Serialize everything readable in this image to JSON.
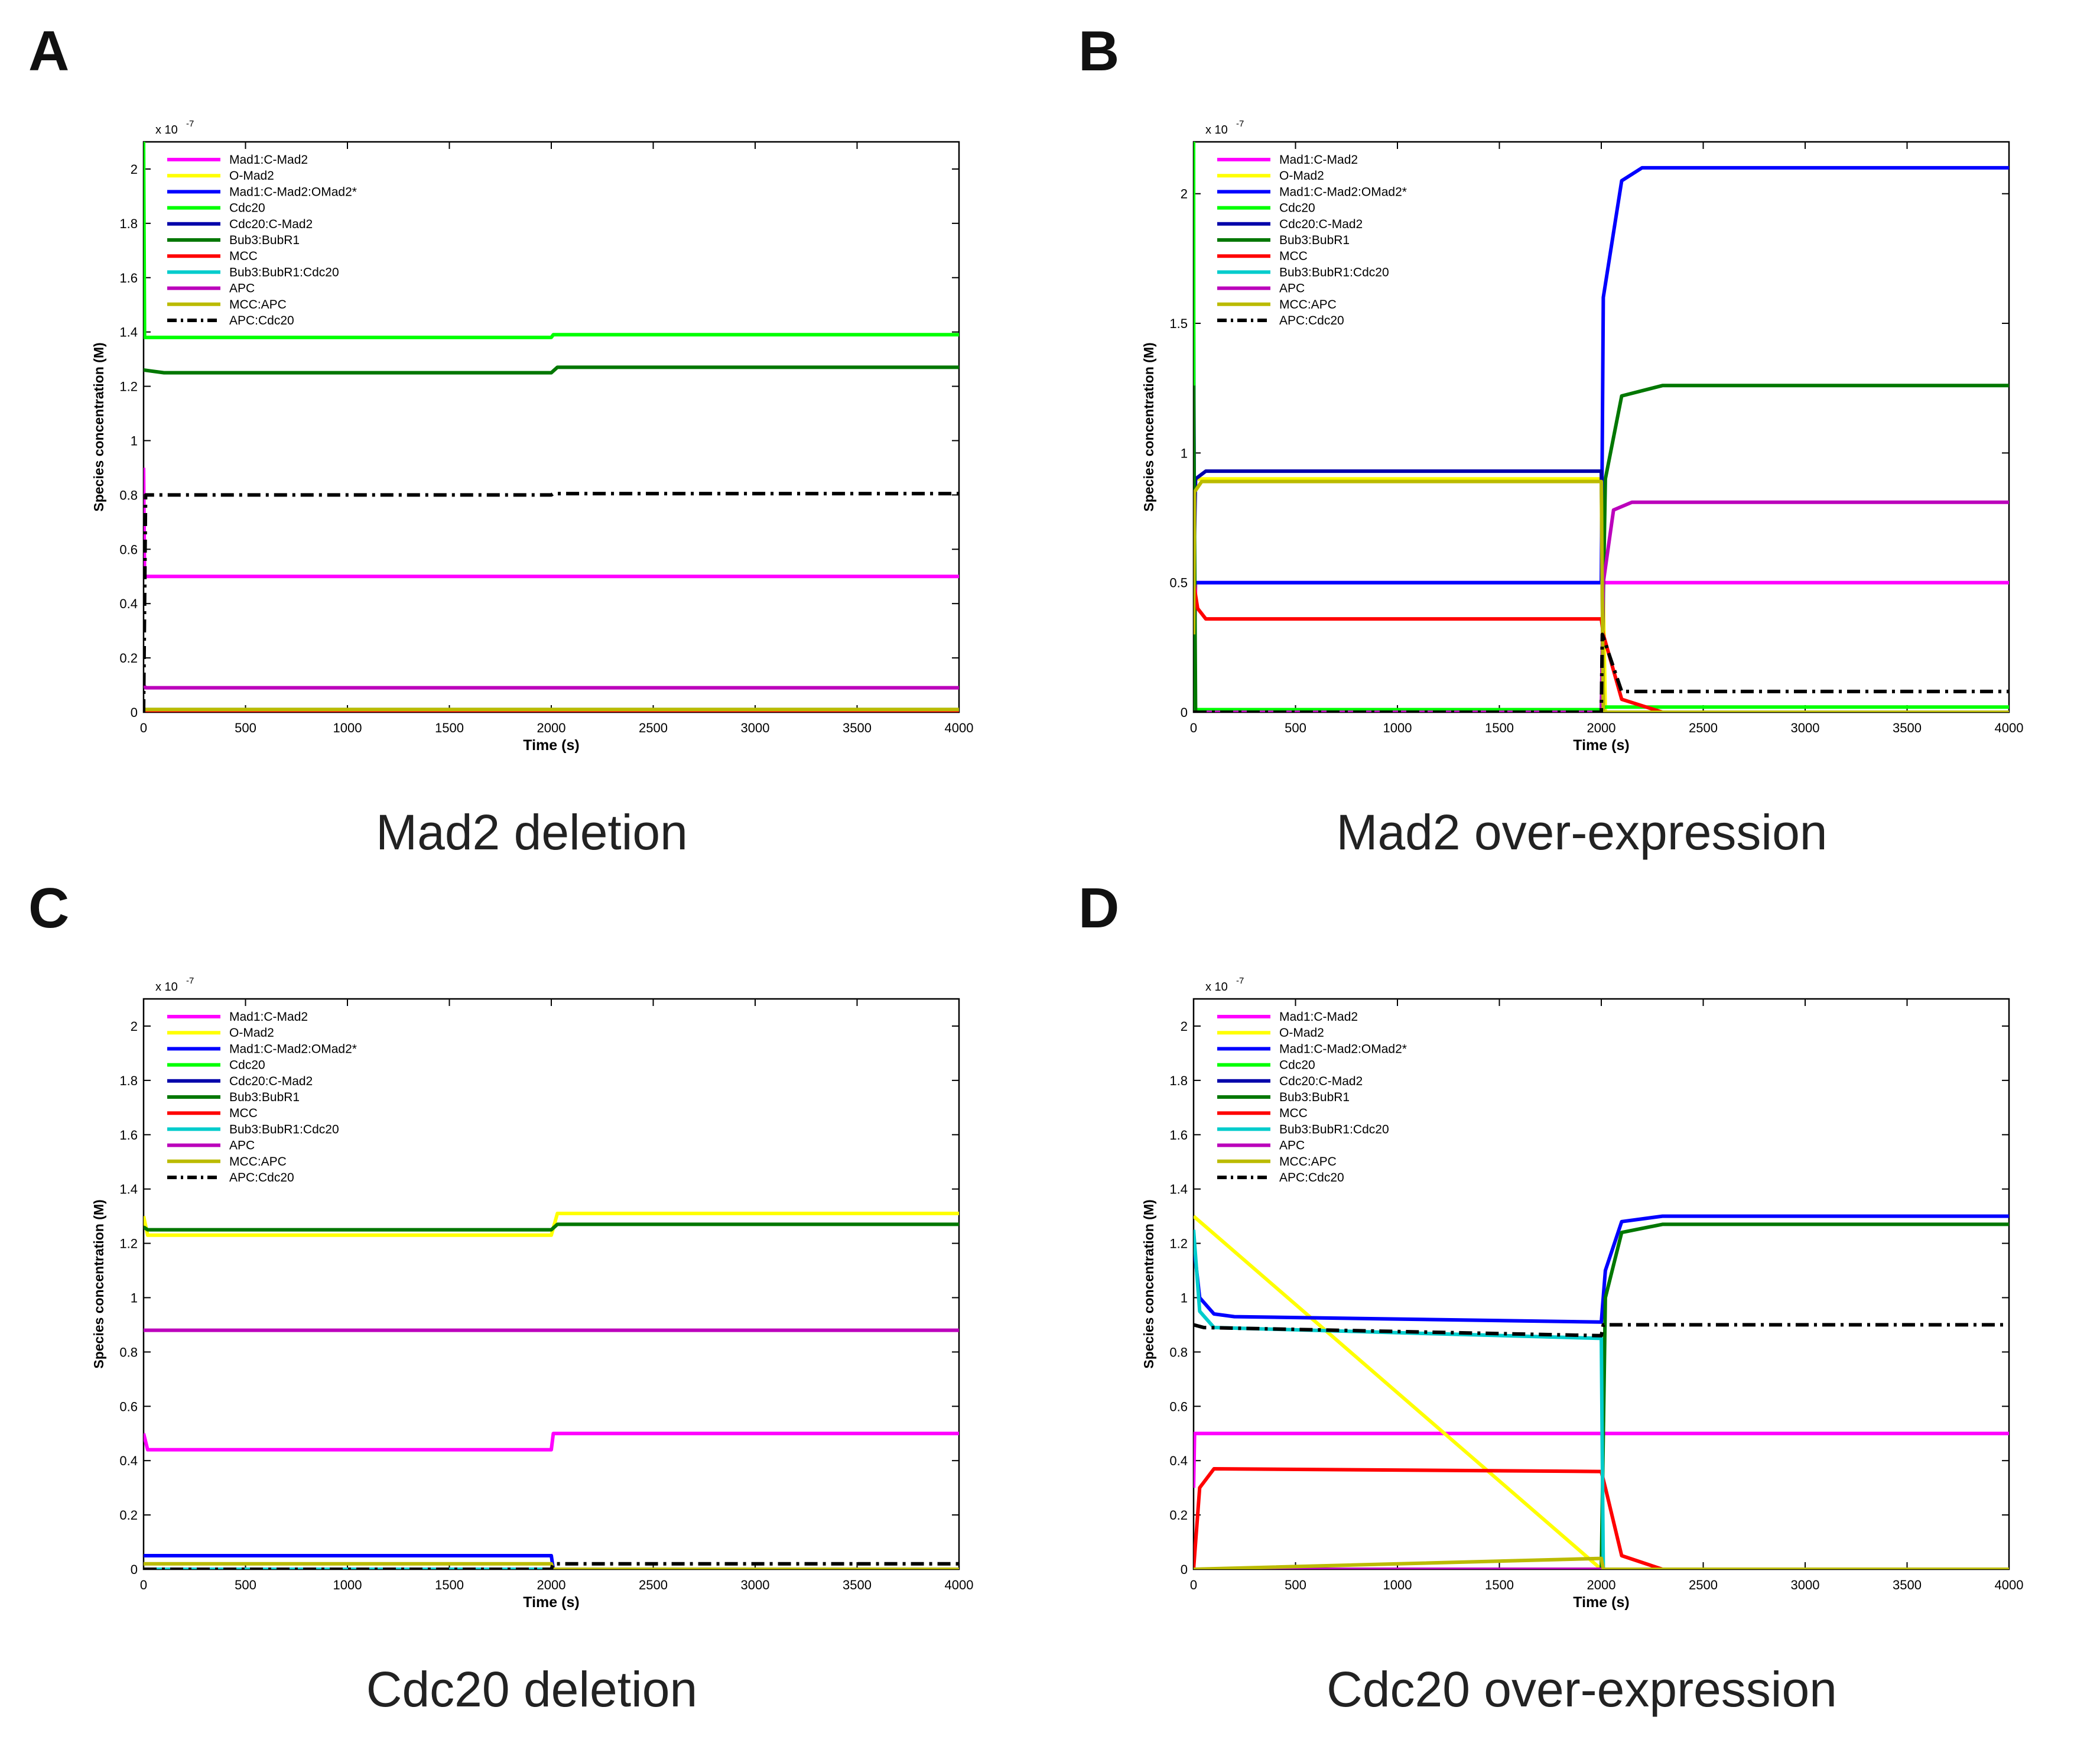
{
  "figure": {
    "xlabel": "Time (s)",
    "ylabel": "Species concentration (M)",
    "exponent": "x 10",
    "exponent_power": "-7",
    "xlim": [
      0,
      4000
    ],
    "xticks": [
      0,
      500,
      1000,
      1500,
      2000,
      2500,
      3000,
      3500,
      4000
    ],
    "colors": {
      "Mad1:C-Mad2": "#ff00ff",
      "O-Mad2": "#ffff00",
      "Mad1:C-Mad2:OMad2*": "#0000ff",
      "Cdc20": "#00ff00",
      "Cdc20:C-Mad2": "#0000aa",
      "Bub3:BubR1": "#007700",
      "MCC": "#ff0000",
      "Bub3:BubR1:Cdc20": "#00cccc",
      "APC": "#bb00bb",
      "MCC:APC": "#bbbb00",
      "APC:Cdc20": "#000000"
    }
  },
  "panels": [
    {
      "letter": "A",
      "caption": "Mad2 deletion"
    },
    {
      "letter": "B",
      "caption": "Mad2 over-expression"
    },
    {
      "letter": "C",
      "caption": "Cdc20 deletion"
    },
    {
      "letter": "D",
      "caption": "Cdc20 over-expression"
    }
  ],
  "chart_data": [
    {
      "type": "line",
      "xlabel": "Time (s)",
      "ylabel": "Species concentration (M)",
      "xlim": [
        0,
        4000
      ],
      "ylim": [
        0,
        2.1
      ],
      "yticks": [
        0,
        0.2,
        0.4,
        0.6,
        0.8,
        1,
        1.2,
        1.4,
        1.6,
        1.8,
        2
      ],
      "y_scale_note": "x 10^-7",
      "legend": "top-left",
      "series": [
        {
          "name": "Mad1:C-Mad2",
          "x": [
            0,
            5,
            40,
            2000,
            4000
          ],
          "y": [
            0.9,
            0.5,
            0.5,
            0.5,
            0.5
          ]
        },
        {
          "name": "O-Mad2",
          "x": [
            0,
            4000
          ],
          "y": [
            0.005,
            0.005
          ]
        },
        {
          "name": "Mad1:C-Mad2:OMad2*",
          "x": [
            0,
            4000
          ],
          "y": [
            0.0,
            0.0
          ]
        },
        {
          "name": "Cdc20",
          "x": [
            0,
            5,
            50,
            2000,
            2010,
            4000
          ],
          "y": [
            2.1,
            1.38,
            1.38,
            1.38,
            1.39,
            1.39
          ]
        },
        {
          "name": "Cdc20:C-Mad2",
          "x": [
            0,
            4000
          ],
          "y": [
            0.0,
            0.0
          ]
        },
        {
          "name": "Bub3:BubR1",
          "x": [
            0,
            100,
            2000,
            2030,
            4000
          ],
          "y": [
            1.26,
            1.25,
            1.25,
            1.27,
            1.27
          ]
        },
        {
          "name": "MCC",
          "x": [
            0,
            4000
          ],
          "y": [
            0.0,
            0.0
          ]
        },
        {
          "name": "Bub3:BubR1:Cdc20",
          "x": [
            0,
            4000
          ],
          "y": [
            0.01,
            0.01
          ]
        },
        {
          "name": "APC",
          "x": [
            0,
            10,
            4000
          ],
          "y": [
            0.1,
            0.09,
            0.09
          ]
        },
        {
          "name": "MCC:APC",
          "x": [
            0,
            4000
          ],
          "y": [
            0.01,
            0.01
          ]
        },
        {
          "name": "APC:Cdc20",
          "x": [
            0,
            10,
            50,
            2000,
            2010,
            4000
          ],
          "y": [
            0.0,
            0.8,
            0.8,
            0.8,
            0.805,
            0.805
          ]
        }
      ]
    },
    {
      "type": "line",
      "xlabel": "Time (s)",
      "ylabel": "Species concentration (M)",
      "xlim": [
        0,
        4000
      ],
      "ylim": [
        0,
        2.2
      ],
      "yticks": [
        0,
        0.5,
        1,
        1.5,
        2
      ],
      "y_scale_note": "x 10^-7",
      "legend": "top-left",
      "series": [
        {
          "name": "Mad1:C-Mad2",
          "x": [
            0,
            10,
            2000,
            2020,
            4000
          ],
          "y": [
            0.0,
            0.5,
            0.5,
            0.5,
            0.5
          ]
        },
        {
          "name": "O-Mad2",
          "x": [
            0,
            20,
            2000,
            2020,
            4000
          ],
          "y": [
            0.9,
            0.9,
            0.9,
            0.0,
            0.0
          ]
        },
        {
          "name": "Mad1:C-Mad2:OMad2*",
          "x": [
            0,
            5,
            20,
            2000,
            2010,
            2100,
            2200,
            4000
          ],
          "y": [
            1.5,
            0.5,
            0.5,
            0.5,
            1.6,
            2.05,
            2.1,
            2.1
          ]
        },
        {
          "name": "Cdc20",
          "x": [
            0,
            2,
            20,
            2000,
            2020,
            4000
          ],
          "y": [
            2.2,
            0.01,
            0.01,
            0.01,
            0.02,
            0.02
          ]
        },
        {
          "name": "Cdc20:C-Mad2",
          "x": [
            0,
            10,
            60,
            2000,
            2010,
            2100,
            4000
          ],
          "y": [
            0.5,
            0.9,
            0.93,
            0.93,
            0.0,
            0.0,
            0.0
          ]
        },
        {
          "name": "Bub3:BubR1",
          "x": [
            0,
            10,
            2000,
            2020,
            2100,
            2300,
            4000
          ],
          "y": [
            1.26,
            0.0,
            0.0,
            0.9,
            1.22,
            1.26,
            1.26
          ]
        },
        {
          "name": "MCC",
          "x": [
            0,
            20,
            60,
            2000,
            2010,
            2100,
            2300,
            4000
          ],
          "y": [
            0.5,
            0.4,
            0.36,
            0.36,
            0.3,
            0.05,
            0.0,
            0.0
          ]
        },
        {
          "name": "Bub3:BubR1:Cdc20",
          "x": [
            0,
            4000
          ],
          "y": [
            0.0,
            0.0
          ]
        },
        {
          "name": "APC",
          "x": [
            0,
            2000,
            2010,
            2060,
            2150,
            4000
          ],
          "y": [
            0.0,
            0.0,
            0.5,
            0.78,
            0.81,
            0.81
          ]
        },
        {
          "name": "MCC:APC",
          "x": [
            0,
            5,
            40,
            2000,
            2010,
            2050,
            4000
          ],
          "y": [
            0.3,
            0.85,
            0.89,
            0.89,
            0.0,
            0.0,
            0.0
          ]
        },
        {
          "name": "APC:Cdc20",
          "x": [
            0,
            2000,
            2005,
            2100,
            4000
          ],
          "y": [
            0.0,
            0.0,
            0.3,
            0.08,
            0.08
          ]
        }
      ]
    },
    {
      "type": "line",
      "xlabel": "Time (s)",
      "ylabel": "Species concentration (M)",
      "xlim": [
        0,
        4000
      ],
      "ylim": [
        0,
        2.1
      ],
      "yticks": [
        0,
        0.2,
        0.4,
        0.6,
        0.8,
        1,
        1.2,
        1.4,
        1.6,
        1.8,
        2
      ],
      "y_scale_note": "x 10^-7",
      "legend": "top-left",
      "series": [
        {
          "name": "Mad1:C-Mad2",
          "x": [
            0,
            20,
            2000,
            2010,
            4000
          ],
          "y": [
            0.5,
            0.44,
            0.44,
            0.5,
            0.5
          ]
        },
        {
          "name": "O-Mad2",
          "x": [
            0,
            20,
            2000,
            2030,
            4000
          ],
          "y": [
            1.3,
            1.23,
            1.23,
            1.31,
            1.31
          ]
        },
        {
          "name": "Mad1:C-Mad2:OMad2*",
          "x": [
            0,
            20,
            2000,
            2010,
            4000
          ],
          "y": [
            0.05,
            0.05,
            0.05,
            0.0,
            0.0
          ]
        },
        {
          "name": "Cdc20",
          "x": [
            0,
            4000
          ],
          "y": [
            0.0,
            0.0
          ]
        },
        {
          "name": "Cdc20:C-Mad2",
          "x": [
            0,
            4000
          ],
          "y": [
            0.0,
            0.0
          ]
        },
        {
          "name": "Bub3:BubR1",
          "x": [
            0,
            20,
            2000,
            2030,
            4000
          ],
          "y": [
            1.26,
            1.25,
            1.25,
            1.27,
            1.27
          ]
        },
        {
          "name": "MCC",
          "x": [
            0,
            4000
          ],
          "y": [
            0.0,
            0.0
          ]
        },
        {
          "name": "Bub3:BubR1:Cdc20",
          "x": [
            0,
            4000
          ],
          "y": [
            0.0,
            0.0
          ]
        },
        {
          "name": "APC",
          "x": [
            0,
            2000,
            2010,
            4000
          ],
          "y": [
            0.88,
            0.88,
            0.88,
            0.88
          ]
        },
        {
          "name": "MCC:APC",
          "x": [
            0,
            2000,
            2010,
            4000
          ],
          "y": [
            0.02,
            0.02,
            0.0,
            0.0
          ]
        },
        {
          "name": "APC:Cdc20",
          "x": [
            0,
            2000,
            2010,
            4000
          ],
          "y": [
            0.0,
            0.0,
            0.02,
            0.02
          ]
        }
      ]
    },
    {
      "type": "line",
      "xlabel": "Time (s)",
      "ylabel": "Species concentration (M)",
      "xlim": [
        0,
        4000
      ],
      "ylim": [
        0,
        2.1
      ],
      "yticks": [
        0,
        0.2,
        0.4,
        0.6,
        0.8,
        1,
        1.2,
        1.4,
        1.6,
        1.8,
        2
      ],
      "y_scale_note": "x 10^-7",
      "legend": "top-left",
      "series": [
        {
          "name": "Mad1:C-Mad2",
          "x": [
            0,
            5,
            2000,
            4000
          ],
          "y": [
            0.3,
            0.5,
            0.5,
            0.5
          ]
        },
        {
          "name": "O-Mad2",
          "x": [
            0,
            2000,
            2020,
            4000
          ],
          "y": [
            1.3,
            0.0,
            0.0,
            0.0
          ]
        },
        {
          "name": "Mad1:C-Mad2:OMad2*",
          "x": [
            0,
            30,
            100,
            200,
            2000,
            2020,
            2100,
            2300,
            4000
          ],
          "y": [
            1.2,
            1.0,
            0.94,
            0.93,
            0.91,
            1.1,
            1.28,
            1.3,
            1.3
          ]
        },
        {
          "name": "Cdc20",
          "x": [
            0,
            4000
          ],
          "y": [
            0.0,
            0.0
          ]
        },
        {
          "name": "Cdc20:C-Mad2",
          "x": [
            0,
            4000
          ],
          "y": [
            0.0,
            0.0
          ]
        },
        {
          "name": "Bub3:BubR1",
          "x": [
            0,
            2000,
            2020,
            2100,
            2300,
            4000
          ],
          "y": [
            0.0,
            0.0,
            1.0,
            1.24,
            1.27,
            1.27
          ]
        },
        {
          "name": "MCC",
          "x": [
            0,
            30,
            100,
            2000,
            2020,
            2100,
            2300,
            4000
          ],
          "y": [
            0.0,
            0.3,
            0.37,
            0.36,
            0.3,
            0.05,
            0.0,
            0.0
          ]
        },
        {
          "name": "Bub3:BubR1:Cdc20",
          "x": [
            0,
            30,
            100,
            2000,
            2010,
            4000
          ],
          "y": [
            1.25,
            0.95,
            0.89,
            0.85,
            0.0,
            0.0
          ]
        },
        {
          "name": "APC",
          "x": [
            0,
            4000
          ],
          "y": [
            0.0,
            0.0
          ]
        },
        {
          "name": "MCC:APC",
          "x": [
            0,
            2000,
            2010,
            4000
          ],
          "y": [
            0.0,
            0.04,
            0.0,
            0.0
          ]
        },
        {
          "name": "APC:Cdc20",
          "x": [
            0,
            50,
            2000,
            2010,
            4000
          ],
          "y": [
            0.9,
            0.89,
            0.86,
            0.9,
            0.9
          ]
        }
      ]
    }
  ]
}
